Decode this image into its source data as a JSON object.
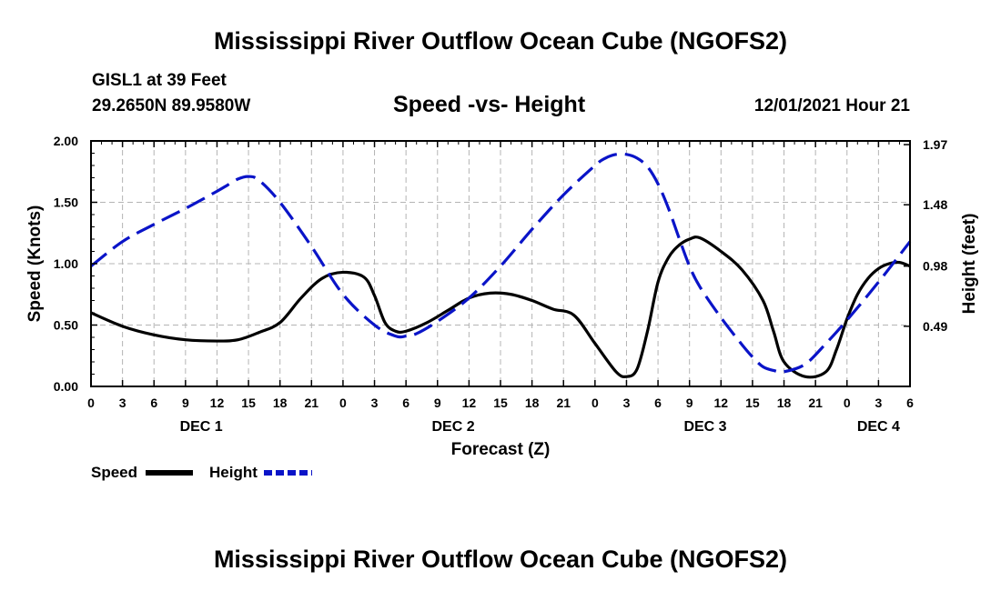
{
  "page": {
    "title": "Mississippi River Outflow Ocean Cube (NGOFS2)",
    "title_repeat": "Mississippi River Outflow Ocean Cube (NGOFS2)",
    "station": "GISL1 at 39 Feet",
    "coords": "29.2650N  89.9580W",
    "datetime": "12/01/2021 Hour 21"
  },
  "chart_data": {
    "type": "line",
    "title": "Speed -vs- Height",
    "xlabel": "Forecast (Z)",
    "ylabel": "Speed (Knots)",
    "y2label": "Height (feet)",
    "xlim": [
      0,
      78
    ],
    "ylim": [
      0,
      2.0
    ],
    "y2lim": [
      0,
      2.0
    ],
    "x_ticks": [
      0,
      3,
      6,
      9,
      12,
      15,
      18,
      21,
      24,
      27,
      30,
      33,
      36,
      39,
      42,
      45,
      48,
      51,
      54,
      57,
      60,
      63,
      66,
      69,
      72,
      75,
      78
    ],
    "x_tick_labels": [
      "0",
      "3",
      "6",
      "9",
      "12",
      "15",
      "18",
      "21",
      "0",
      "3",
      "6",
      "9",
      "12",
      "15",
      "18",
      "21",
      "0",
      "3",
      "6",
      "9",
      "12",
      "15",
      "18",
      "21",
      "0",
      "3",
      "6"
    ],
    "day_labels": [
      {
        "x": 10.5,
        "label": "DEC 1"
      },
      {
        "x": 34.5,
        "label": "DEC 2"
      },
      {
        "x": 58.5,
        "label": "DEC 3"
      },
      {
        "x": 75.0,
        "label": "DEC 4"
      }
    ],
    "y_ticks": [
      0.0,
      0.5,
      1.0,
      1.5,
      2.0
    ],
    "y_tick_labels": [
      "0.00",
      "0.50",
      "1.00",
      "1.50",
      "2.00"
    ],
    "y2_ticks": [
      0.49,
      0.98,
      1.48,
      1.97
    ],
    "y2_tick_labels": [
      "0.49",
      "0.98",
      "1.48",
      "1.97"
    ],
    "grid": true,
    "legend_position": "bottom-left",
    "series": [
      {
        "name": "Speed",
        "axis": "left",
        "color": "#000000",
        "style": "solid",
        "x": [
          0,
          3,
          6,
          9,
          12,
          14,
          16,
          18,
          20,
          22,
          24,
          26,
          27,
          28,
          29,
          30,
          32,
          34,
          36,
          38,
          40,
          42,
          44,
          46,
          48,
          50,
          51,
          52,
          53,
          54,
          55,
          56,
          57,
          58,
          60,
          62,
          64,
          65,
          66,
          68,
          70,
          71,
          72,
          73,
          74,
          75,
          76,
          77,
          78
        ],
        "values": [
          0.6,
          0.49,
          0.42,
          0.38,
          0.37,
          0.38,
          0.44,
          0.52,
          0.72,
          0.88,
          0.93,
          0.89,
          0.74,
          0.52,
          0.45,
          0.45,
          0.52,
          0.62,
          0.72,
          0.76,
          0.75,
          0.7,
          0.63,
          0.58,
          0.35,
          0.12,
          0.08,
          0.14,
          0.45,
          0.85,
          1.05,
          1.15,
          1.2,
          1.21,
          1.1,
          0.95,
          0.7,
          0.45,
          0.2,
          0.08,
          0.12,
          0.3,
          0.55,
          0.75,
          0.88,
          0.96,
          1.0,
          1.01,
          0.98
        ]
      },
      {
        "name": "Height",
        "axis": "right",
        "color": "#0a14c8",
        "style": "dashed",
        "x": [
          0,
          3,
          6,
          9,
          12,
          13,
          14,
          15,
          16,
          18,
          21,
          24,
          27,
          29,
          30,
          31,
          33,
          36,
          39,
          42,
          45,
          48,
          49,
          50,
          51,
          52,
          53,
          54,
          55,
          56,
          57,
          58,
          60,
          62,
          63,
          64,
          65,
          66,
          68,
          70,
          72,
          75,
          78
        ],
        "values": [
          0.98,
          1.18,
          1.32,
          1.45,
          1.59,
          1.64,
          1.69,
          1.71,
          1.68,
          1.5,
          1.14,
          0.75,
          0.5,
          0.41,
          0.41,
          0.43,
          0.53,
          0.72,
          0.98,
          1.28,
          1.56,
          1.8,
          1.86,
          1.89,
          1.89,
          1.86,
          1.79,
          1.65,
          1.45,
          1.21,
          0.98,
          0.81,
          0.56,
          0.34,
          0.24,
          0.16,
          0.13,
          0.12,
          0.18,
          0.35,
          0.54,
          0.85,
          1.18
        ]
      }
    ]
  }
}
